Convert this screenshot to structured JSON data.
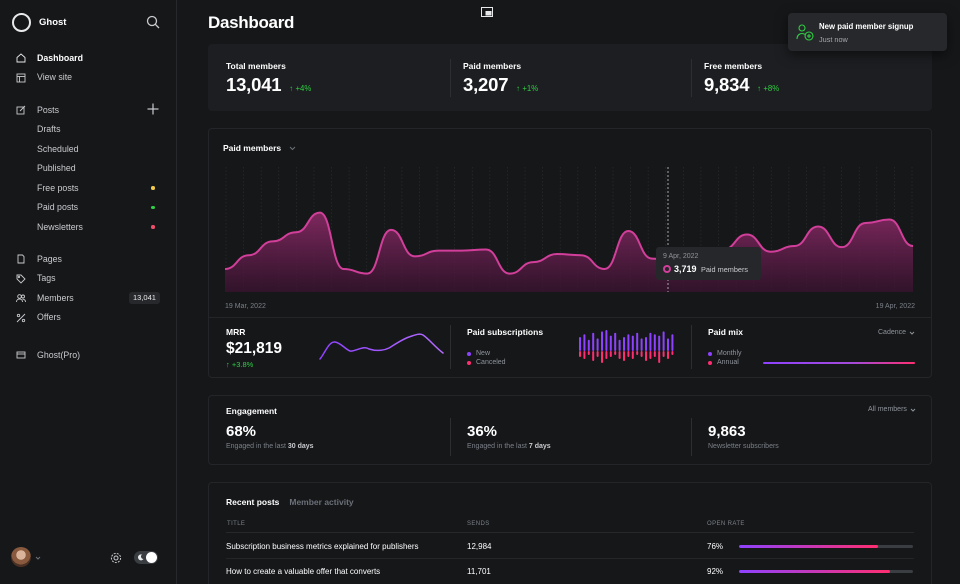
{
  "sidebar": {
    "brand": "Ghost",
    "items": [
      {
        "label": "Dashboard",
        "icon": "home-icon"
      },
      {
        "label": "View site",
        "icon": "layout-icon"
      },
      {
        "label": "Posts",
        "icon": "edit-icon"
      },
      {
        "label": "Drafts"
      },
      {
        "label": "Scheduled"
      },
      {
        "label": "Published"
      },
      {
        "label": "Free posts",
        "dot_color": "#f2c94c"
      },
      {
        "label": "Paid posts",
        "dot_color": "#30cf43"
      },
      {
        "label": "Newsletters",
        "dot_color": "#ef4f6a"
      },
      {
        "label": "Pages",
        "icon": "page-icon"
      },
      {
        "label": "Tags",
        "icon": "tag-icon"
      },
      {
        "label": "Members",
        "icon": "members-icon",
        "count": "13,041"
      },
      {
        "label": "Offers",
        "icon": "percent-icon"
      },
      {
        "label": "Ghost(Pro)",
        "icon": "credit-card-icon"
      }
    ]
  },
  "header": {
    "title": "Dashboard"
  },
  "kpis": [
    {
      "label": "Total members",
      "value": "13,041",
      "delta": "+4%"
    },
    {
      "label": "Paid members",
      "value": "3,207",
      "delta": "+1%"
    },
    {
      "label": "Free members",
      "value": "9,834",
      "delta": "+8%"
    }
  ],
  "paid_chart": {
    "title": "Paid members",
    "date_start": "19 Mar, 2022",
    "date_end": "19 Apr, 2022",
    "tooltip": {
      "date": "9 Apr, 2022",
      "value": "3,719",
      "label": "Paid members"
    }
  },
  "chart_data": {
    "type": "area",
    "title": "Paid members",
    "x_start": "19 Mar, 2022",
    "x_end": "19 Apr, 2022",
    "series": [
      {
        "name": "Paid members",
        "values": [
          0.2,
          0.32,
          0.44,
          0.52,
          0.69,
          0.2,
          0.16,
          0.54,
          0.31,
          0.36,
          0.36,
          0.37,
          0.16,
          0.26,
          0.33,
          0.32,
          0.2,
          0.53,
          0.29,
          0.27,
          0.27,
          0.37,
          0.5,
          0.35,
          0.4,
          0.57,
          0.39,
          0.6,
          0.63,
          0.4
        ]
      }
    ],
    "color": "#d23f9a"
  },
  "mrr": {
    "label": "MRR",
    "value": "$21,819",
    "delta": "+3.8%"
  },
  "paid_subs": {
    "title": "Paid subscriptions",
    "legend_new": "New",
    "legend_canceled": "Canceled"
  },
  "paid_mix": {
    "title": "Paid mix",
    "cadence": "Cadence",
    "legend_monthly": "Monthly",
    "legend_annual": "Annual"
  },
  "engagement": {
    "title": "Engagement",
    "filter": "All members",
    "items": [
      {
        "value": "68%",
        "sub_prefix": "Engaged in the last ",
        "sub_bold": "30 days"
      },
      {
        "value": "36%",
        "sub_prefix": "Engaged in the last ",
        "sub_bold": "7 days"
      },
      {
        "value": "9,863",
        "sub_prefix": "Newsletter subscribers",
        "sub_bold": ""
      }
    ]
  },
  "recent": {
    "tabs": [
      "Recent posts",
      "Member activity"
    ],
    "columns": [
      "TITLE",
      "SENDS",
      "OPEN RATE"
    ],
    "rows": [
      {
        "title": "Subscription business metrics explained for publishers",
        "sends": "12,984",
        "open_rate": "76%",
        "fill": 0.8
      },
      {
        "title": "How to create a valuable offer that converts",
        "sends": "11,701",
        "open_rate": "92%",
        "fill": 0.87
      }
    ]
  },
  "toast": {
    "title": "New paid member signup",
    "subtitle": "Just now"
  },
  "colors": {
    "accent_pink": "#d23f9a",
    "accent_purple": "#8e42ff",
    "positive": "#30cf43",
    "background": "#151719"
  }
}
